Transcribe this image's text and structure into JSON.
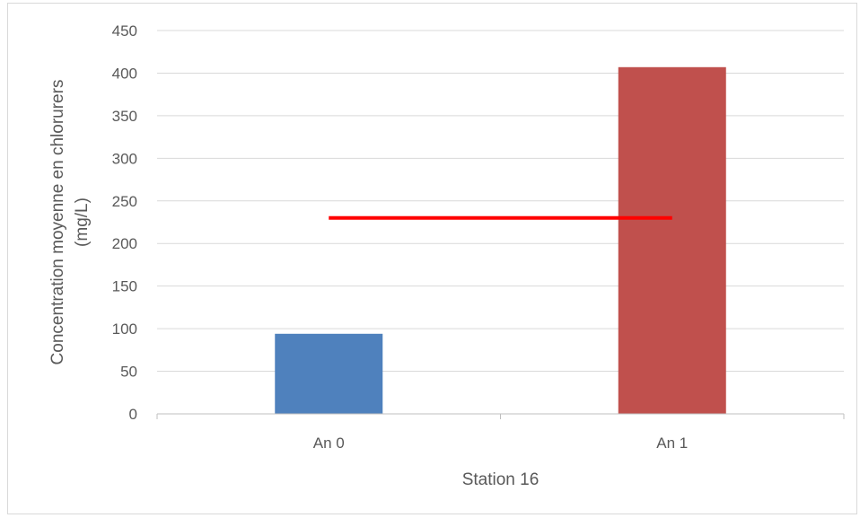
{
  "chart_data": {
    "type": "bar",
    "categories": [
      "An 0",
      "An 1"
    ],
    "values": [
      94,
      407
    ],
    "bar_colors": [
      "#4f81bd",
      "#c0504d"
    ],
    "threshold": {
      "value": 230,
      "color": "#ff0000"
    },
    "xlabel": "Station 16",
    "ylabel_lines": [
      "Concentration moyenne en chlorurers",
      "(mg/L)"
    ],
    "ylim": [
      0,
      450
    ],
    "yticks": [
      0,
      50,
      100,
      150,
      200,
      250,
      300,
      350,
      400,
      450
    ],
    "grid": true,
    "gridline_color": "#d9d9d9"
  }
}
